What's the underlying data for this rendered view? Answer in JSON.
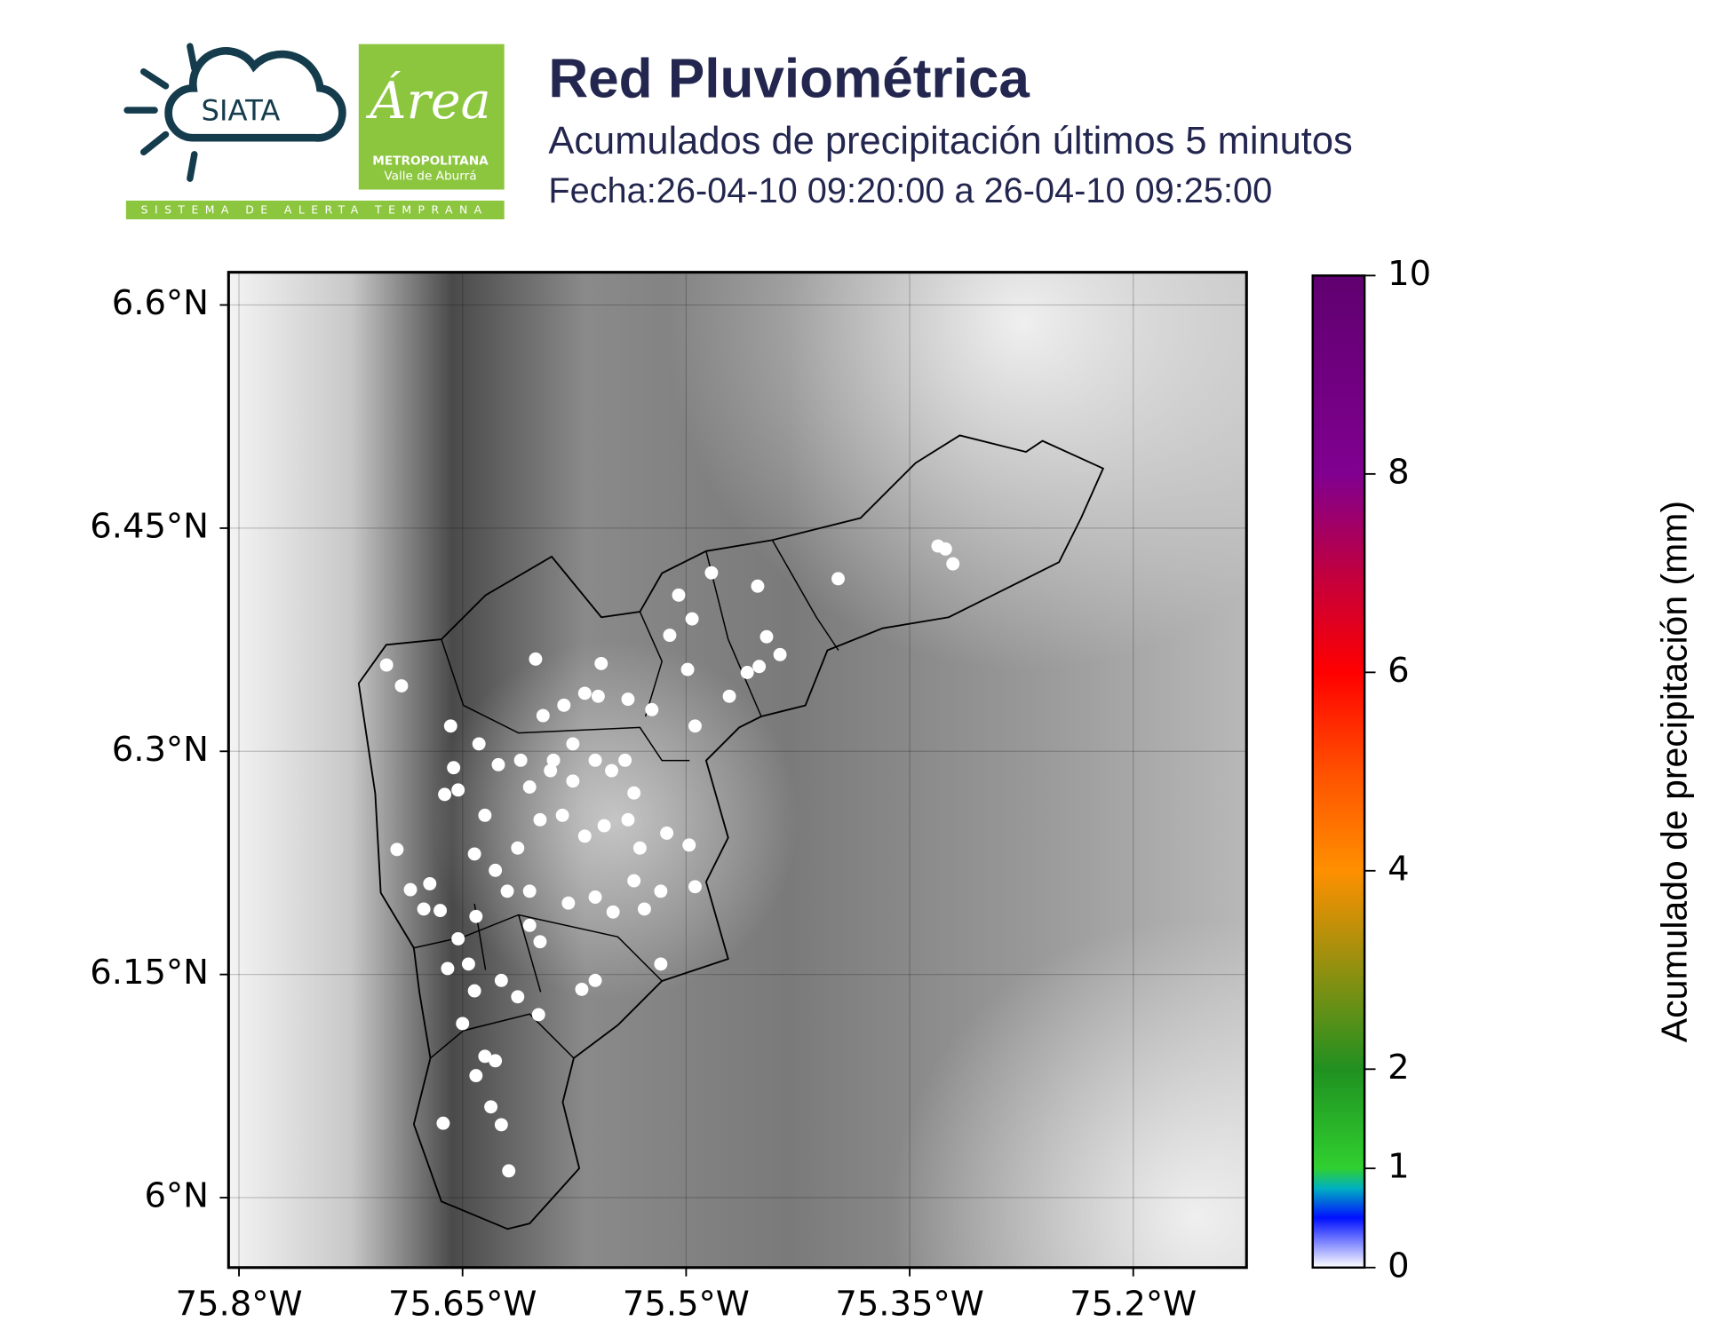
{
  "header": {
    "title": "Red Pluviométrica",
    "subtitle": "Acumulados de precipitación últimos 5 minutos",
    "date": "Fecha:26-04-10 09:20:00 a 26-04-10 09:25:00"
  },
  "logos": {
    "siata": "SIATA",
    "area": "Área",
    "metro": "METROPOLITANA",
    "valle": "Valle de Aburrá",
    "system": "SISTEMA DE ALERTA TEMPRANA"
  },
  "chart_data": {
    "type": "scatter",
    "color": "#ffffff",
    "grid": true,
    "xlim": [
      -75.807,
      -75.124
    ],
    "ylim": [
      5.953,
      6.622
    ],
    "xticks": [
      {
        "value": -75.8,
        "label": "75.8°W"
      },
      {
        "value": -75.65,
        "label": "75.65°W"
      },
      {
        "value": -75.5,
        "label": "75.5°W"
      },
      {
        "value": -75.35,
        "label": "75.35°W"
      },
      {
        "value": -75.2,
        "label": "75.2°W"
      }
    ],
    "yticks": [
      {
        "value": 6.6,
        "label": "6.6°N"
      },
      {
        "value": 6.45,
        "label": "6.45°N"
      },
      {
        "value": 6.3,
        "label": "6.3°N"
      },
      {
        "value": 6.15,
        "label": "6.15°N"
      },
      {
        "value": 6.0,
        "label": "6°N"
      }
    ],
    "x": [
      -75.701,
      -75.691,
      -75.601,
      -75.557,
      -75.658,
      -75.639,
      -75.626,
      -75.611,
      -75.596,
      -75.582,
      -75.568,
      -75.559,
      -75.539,
      -75.523,
      -75.505,
      -75.496,
      -75.511,
      -75.499,
      -75.494,
      -75.483,
      -75.452,
      -75.446,
      -75.437,
      -75.459,
      -75.451,
      -75.471,
      -75.398,
      -75.331,
      -75.326,
      -75.321,
      -75.656,
      -75.662,
      -75.653,
      -75.635,
      -75.605,
      -75.591,
      -75.576,
      -75.561,
      -75.55,
      -75.541,
      -75.535,
      -75.539,
      -75.531,
      -75.555,
      -75.568,
      -75.583,
      -75.598,
      -75.613,
      -75.628,
      -75.642,
      -75.694,
      -75.685,
      -75.672,
      -75.676,
      -75.665,
      -75.641,
      -75.62,
      -75.605,
      -75.579,
      -75.561,
      -75.549,
      -75.535,
      -75.517,
      -75.498,
      -75.494,
      -75.517,
      -75.561,
      -75.57,
      -75.598,
      -75.605,
      -75.66,
      -75.646,
      -75.642,
      -75.65,
      -75.624,
      -75.613,
      -75.599,
      -75.628,
      -75.635,
      -75.641,
      -75.631,
      -75.624,
      -75.663,
      -75.619,
      -75.653,
      -75.513,
      -75.528,
      -75.589,
      -75.576
    ],
    "y": [
      6.358,
      6.344,
      6.362,
      6.359,
      6.317,
      6.305,
      6.291,
      6.294,
      6.324,
      6.331,
      6.339,
      6.337,
      6.335,
      6.328,
      6.405,
      6.389,
      6.378,
      6.355,
      6.317,
      6.42,
      6.411,
      6.377,
      6.365,
      6.353,
      6.357,
      6.337,
      6.416,
      6.438,
      6.436,
      6.426,
      6.289,
      6.271,
      6.274,
      6.257,
      6.276,
      6.287,
      6.28,
      6.294,
      6.287,
      6.294,
      6.272,
      6.254,
      6.235,
      6.25,
      6.243,
      6.257,
      6.254,
      6.235,
      6.22,
      6.231,
      6.234,
      6.207,
      6.211,
      6.194,
      6.193,
      6.189,
      6.206,
      6.206,
      6.198,
      6.202,
      6.192,
      6.213,
      6.206,
      6.237,
      6.209,
      6.157,
      6.146,
      6.14,
      6.172,
      6.183,
      6.154,
      6.157,
      6.139,
      6.117,
      6.146,
      6.135,
      6.123,
      6.092,
      6.095,
      6.082,
      6.061,
      6.049,
      6.05,
      6.018,
      6.174,
      6.245,
      6.194,
      6.294,
      6.305
    ],
    "colorbar": {
      "label": "Acumulado de precipitación (mm)",
      "lim": [
        0,
        10
      ],
      "ticks": [
        0,
        1,
        2,
        4,
        6,
        8,
        10
      ],
      "colormap": [
        {
          "value": 0,
          "color": "#ffffff"
        },
        {
          "value": 0.5,
          "color": "#0010ff"
        },
        {
          "value": 0.8,
          "color": "#00b0c0"
        },
        {
          "value": 1,
          "color": "#30d030"
        },
        {
          "value": 2,
          "color": "#209020"
        },
        {
          "value": 3,
          "color": "#909010"
        },
        {
          "value": 4,
          "color": "#ff9000"
        },
        {
          "value": 5,
          "color": "#ff5000"
        },
        {
          "value": 6,
          "color": "#ff0000"
        },
        {
          "value": 7,
          "color": "#c00040"
        },
        {
          "value": 8,
          "color": "#800090"
        },
        {
          "value": 10,
          "color": "#600070"
        }
      ]
    }
  }
}
